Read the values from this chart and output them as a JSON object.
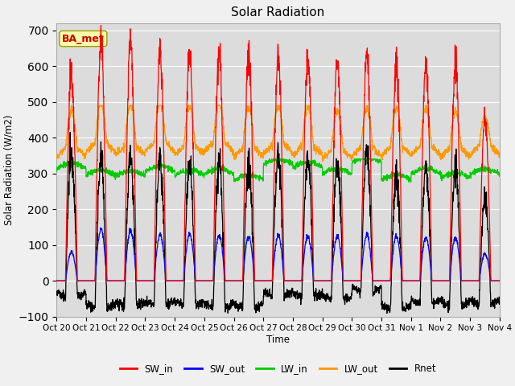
{
  "title": "Solar Radiation",
  "ylabel": "Solar Radiation (W/m2)",
  "xlabel": "Time",
  "ylim": [
    -100,
    720
  ],
  "yticks": [
    -100,
    0,
    100,
    200,
    300,
    400,
    500,
    600,
    700
  ],
  "colors": {
    "SW_in": "#ff0000",
    "SW_out": "#0000ff",
    "LW_in": "#00cc00",
    "LW_out": "#ff9900",
    "Rnet": "#000000"
  },
  "legend_label": "BA_met",
  "xtick_labels": [
    "Oct 20",
    "Oct 21",
    "Oct 22",
    "Oct 23",
    "Oct 24",
    "Oct 25",
    "Oct 26",
    "Oct 27",
    "Oct 28",
    "Oct 29",
    "Oct 30",
    "Oct 31",
    "Nov 1",
    "Nov 2",
    "Nov 3",
    "Nov 4"
  ],
  "plot_bg": "#dcdcdc",
  "fig_bg": "#f0f0f0",
  "grid_color": "#ffffff",
  "num_days": 15,
  "SW_in_peaks": [
    580,
    665,
    670,
    645,
    640,
    635,
    635,
    630,
    625,
    620,
    635,
    608,
    600,
    600,
    450
  ],
  "SW_out_peaks": [
    80,
    145,
    140,
    130,
    130,
    128,
    125,
    125,
    125,
    125,
    130,
    125,
    120,
    120,
    75
  ],
  "LW_in_base": 300,
  "LW_out_base": 350,
  "LW_in_range": [
    275,
    340
  ],
  "LW_out_range": [
    310,
    490
  ],
  "night_rnet": -55
}
